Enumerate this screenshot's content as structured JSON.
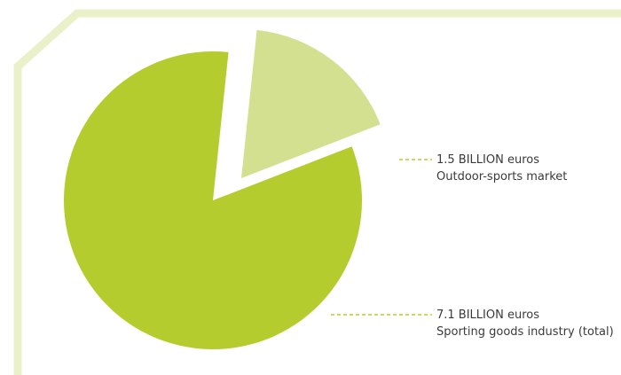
{
  "chart_data": {
    "type": "pie",
    "slices": [
      {
        "value_label": "1.5 BILLION euros",
        "description": "Outdoor-sports market",
        "value": 1.5,
        "color": "#d3e08f"
      },
      {
        "value_label": "7.1 BILLION euros",
        "description": "Sporting goods industry (total)",
        "value": 7.1,
        "color": "#b5cc2e"
      }
    ],
    "exploded_slice": "Outdoor-sports market",
    "leader_line_style": "dashed",
    "leader_color": "#b5cc2e"
  },
  "frame_color": "#eaf0c8"
}
